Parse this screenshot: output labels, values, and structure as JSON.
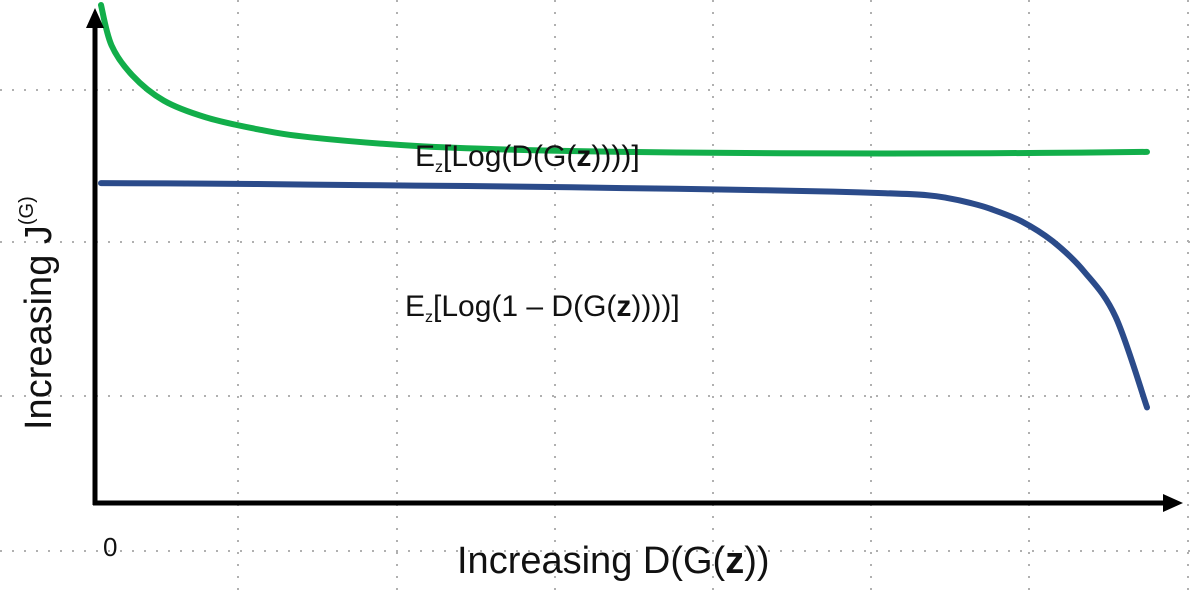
{
  "chart_data": {
    "type": "line",
    "xlabel": {
      "prefix": "Increasing D(G(",
      "bold": "z",
      "suffix": "))"
    },
    "ylabel": {
      "text": "Increasing J",
      "sup": "(G)"
    },
    "x_tick_labels": [
      "0"
    ],
    "grid": "dotted",
    "colors": {
      "green": "#12ae4a",
      "blue": "#2b4b8a",
      "axis": "#000000",
      "grid": "#b0b0b0"
    },
    "series": [
      {
        "label": {
          "pre": "E",
          "sub": "z",
          "mid": "[Log(D(G(",
          "bold": "z",
          "post": "))))]"
        },
        "color_key": "green",
        "x": [
          0,
          0.01,
          0.03,
          0.06,
          0.1,
          0.15,
          0.2,
          0.3,
          0.4,
          0.5,
          0.6,
          0.7,
          0.8,
          0.9,
          1.0
        ],
        "y": [
          0.99,
          0.91,
          0.85,
          0.8,
          0.767,
          0.743,
          0.727,
          0.71,
          0.702,
          0.698,
          0.696,
          0.695,
          0.695,
          0.696,
          0.698
        ]
      },
      {
        "label": {
          "pre": "E",
          "sub": "z",
          "mid": "[Log(1 – D(G(",
          "bold": "z",
          "post": "))))]"
        },
        "color_key": "blue",
        "x": [
          0,
          0.1,
          0.2,
          0.3,
          0.4,
          0.5,
          0.6,
          0.7,
          0.75,
          0.79,
          0.81,
          0.83,
          0.85,
          0.88,
          0.91,
          0.94,
          0.97,
          1.0
        ],
        "y": [
          0.636,
          0.635,
          0.633,
          0.631,
          0.629,
          0.626,
          0.623,
          0.619,
          0.616,
          0.612,
          0.606,
          0.597,
          0.585,
          0.56,
          0.52,
          0.46,
          0.37,
          0.19
        ]
      }
    ]
  }
}
